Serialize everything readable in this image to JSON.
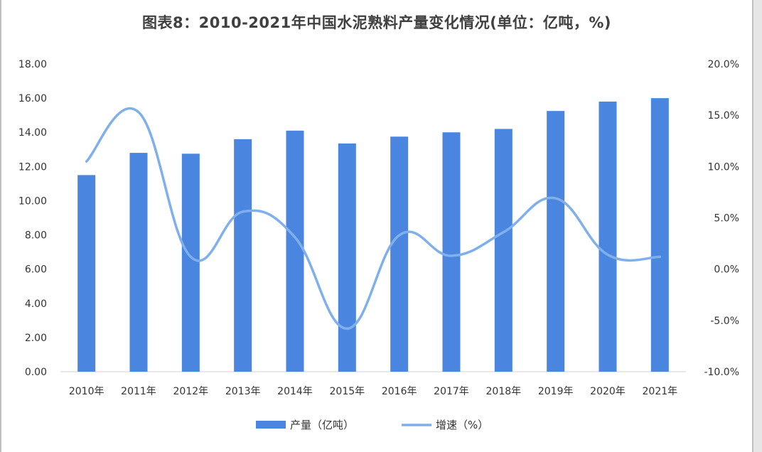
{
  "chart_data": {
    "type": "bar",
    "title": "图表8：2010-2021年中国水泥熟料产量变化情况(单位：亿吨，%)",
    "categories": [
      "2010年",
      "2011年",
      "2012年",
      "2013年",
      "2014年",
      "2015年",
      "2016年",
      "2017年",
      "2018年",
      "2019年",
      "2020年",
      "2021年"
    ],
    "series": [
      {
        "name": "产量（亿吨）",
        "kind": "bar",
        "axis": "left",
        "color": "#4a86e0",
        "values": [
          11.5,
          12.8,
          12.75,
          13.6,
          14.1,
          13.35,
          13.75,
          14.0,
          14.2,
          15.25,
          15.8,
          16.0
        ]
      },
      {
        "name": "增速（%）",
        "kind": "line",
        "axis": "right",
        "color": "#7fb0ec",
        "values": [
          10.5,
          15.3,
          1.2,
          5.6,
          3.1,
          -5.8,
          3.3,
          1.3,
          3.6,
          6.9,
          1.4,
          1.2
        ]
      }
    ],
    "y_left": {
      "ylim": [
        0,
        18
      ],
      "ticks": [
        "0.00",
        "2.00",
        "4.00",
        "6.00",
        "8.00",
        "10.00",
        "12.00",
        "14.00",
        "16.00",
        "18.00"
      ]
    },
    "y_right": {
      "ylim": [
        -10,
        20
      ],
      "ticks": [
        "-10.0%",
        "-5.0%",
        "0.0%",
        "5.0%",
        "10.0%",
        "15.0%",
        "20.0%"
      ]
    },
    "grid": false,
    "legend_position": "bottom"
  },
  "colors": {
    "bar": "#4a86e0",
    "line": "#7fb0ec",
    "axis": "#d0d0d0"
  }
}
